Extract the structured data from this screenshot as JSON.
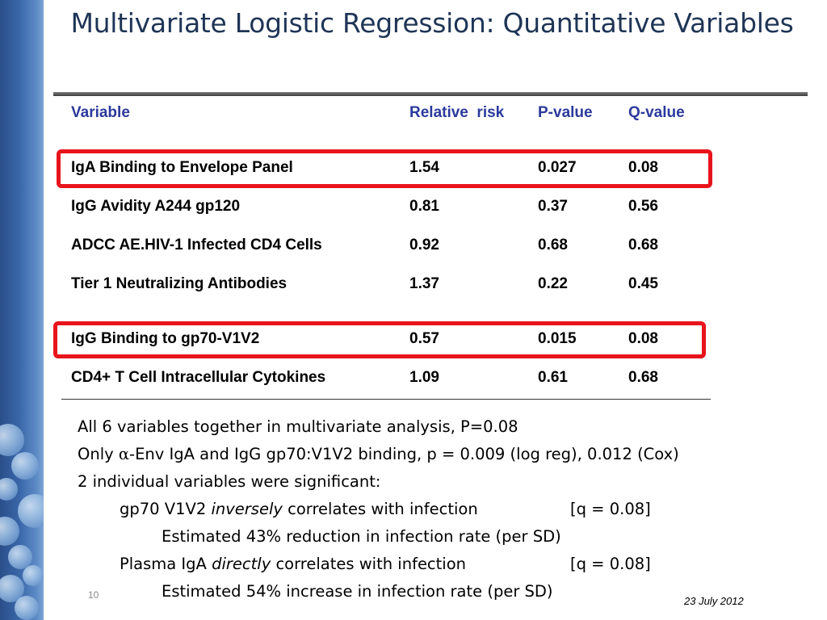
{
  "slide": {
    "title": "Multivariate Logistic Regression: Quantitative Variables",
    "slide_number": "10",
    "date": "23 July 2012"
  },
  "table": {
    "headers": {
      "variable": "Variable",
      "relative_risk": "Relative  risk",
      "p_value": "P-value",
      "q_value": "Q-value"
    },
    "rows": [
      {
        "variable": "IgA Binding to Envelope Panel",
        "relative_risk": "1.54",
        "p_value": "0.027",
        "q_value": "0.08",
        "highlighted": true
      },
      {
        "variable": "IgG Avidity A244 gp120",
        "relative_risk": "0.81",
        "p_value": "0.37",
        "q_value": "0.56",
        "highlighted": false
      },
      {
        "variable": "ADCC AE.HIV-1 Infected CD4 Cells",
        "relative_risk": "0.92",
        "p_value": "0.68",
        "q_value": "0.68",
        "highlighted": false
      },
      {
        "variable": "Tier 1 Neutralizing Antibodies",
        "relative_risk": "1.37",
        "p_value": "0.22",
        "q_value": "0.45",
        "highlighted": false
      },
      {
        "variable": "IgG Binding to gp70-V1V2",
        "relative_risk": "0.57",
        "p_value": "0.015",
        "q_value": "0.08",
        "highlighted": true
      },
      {
        "variable": "CD4+ T Cell Intracellular Cytokines",
        "relative_risk": "1.09",
        "p_value": "0.61",
        "q_value": "0.68",
        "highlighted": false
      }
    ],
    "highlight_color": "#e8141c",
    "header_color": "#2b3a9c"
  },
  "notes": {
    "line1": "All 6 variables together in multivariate analysis, P=0.08",
    "line2_prefix": "Only ",
    "line2_alpha": "α",
    "line2_rest": "-Env IgA and IgG gp70:V1V2 binding, p = 0.009 (log reg), 0.012 (Cox)",
    "line3": "2 individual variables were significant:",
    "line4_a": "gp70 V1V2 ",
    "line4_em": "inversely",
    "line4_b": " correlates with infection",
    "line4_q": "[q = 0.08]",
    "line5": "Estimated 43% reduction in infection rate (per SD)",
    "line6_a": "Plasma IgA ",
    "line6_em": "directly",
    "line6_b": " correlates with infection",
    "line6_q": "[q = 0.08]",
    "line7": "Estimated 54% increase in infection rate (per SD)"
  }
}
